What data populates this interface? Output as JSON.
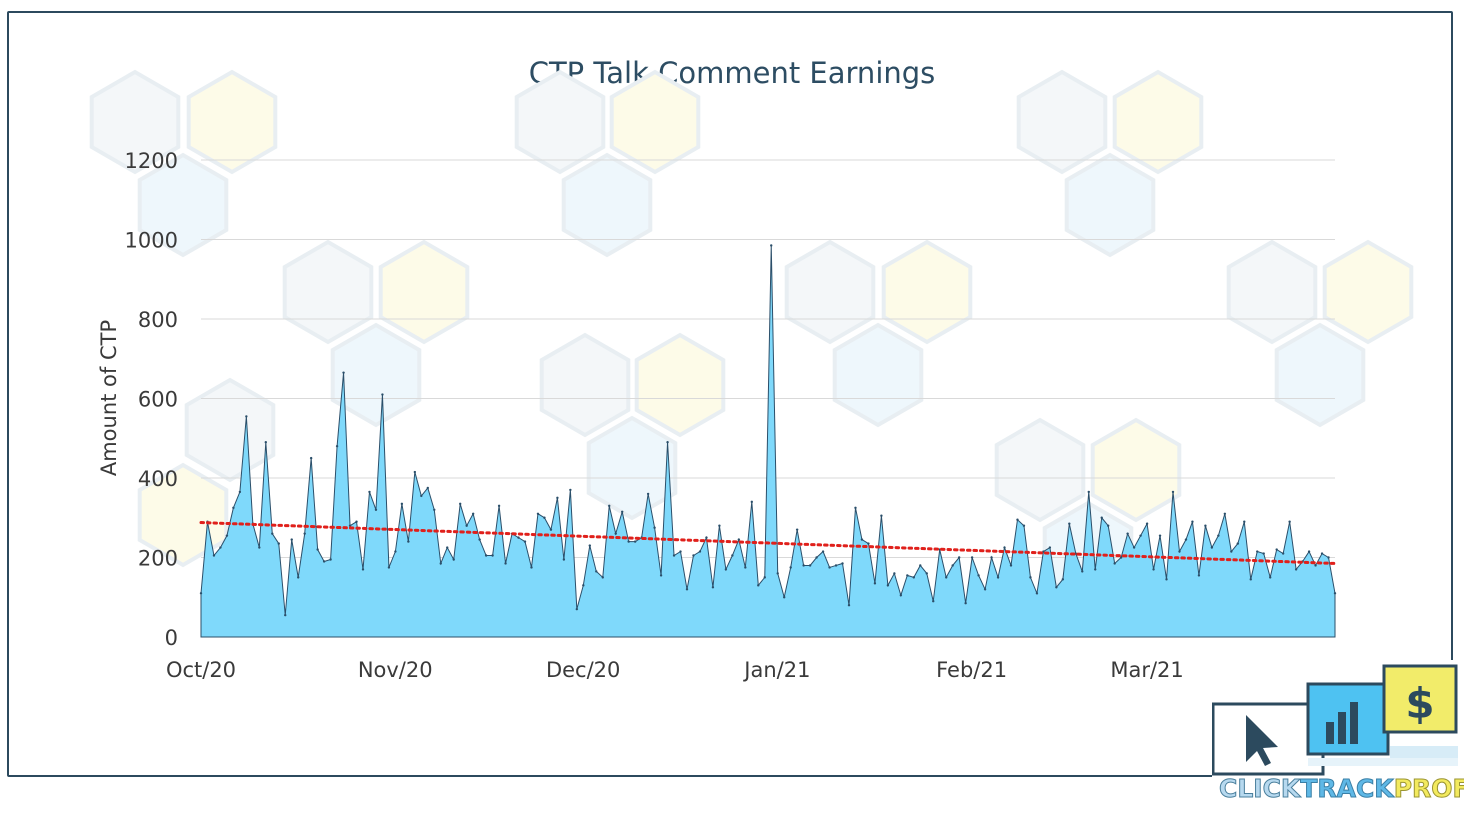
{
  "chart_data": {
    "type": "area",
    "title": "CTP Talk Comment Earnings",
    "xlabel": "",
    "ylabel": "Amount of CTP",
    "ylim": [
      0,
      1200
    ],
    "yticks": [
      "0",
      "200",
      "400",
      "600",
      "800",
      "1000",
      "1200"
    ],
    "xticks": [
      "Oct/20",
      "Nov/20",
      "Dec/20",
      "Jan/21",
      "Feb/21",
      "Mar/21"
    ],
    "grid": true,
    "legend": "none",
    "x_start": "2020-10-01",
    "x_end": "2021-03-31",
    "series": [
      {
        "values": [
          110,
          290,
          205,
          225,
          255,
          325,
          365,
          555,
          285,
          225,
          490,
          260,
          235,
          55,
          245,
          150,
          260,
          450,
          220,
          190,
          195,
          480,
          665,
          280,
          290,
          170,
          365,
          320,
          610,
          175,
          215,
          335,
          240,
          415,
          355,
          375,
          320,
          185,
          225,
          195,
          335,
          280,
          310,
          245,
          205,
          205,
          330,
          185,
          260,
          250,
          240,
          175,
          310,
          300,
          270,
          350,
          195,
          370,
          70,
          130,
          230,
          165,
          150,
          330,
          260,
          315,
          240,
          240,
          250,
          360,
          275,
          155,
          490,
          205,
          215,
          120,
          205,
          215,
          250,
          125,
          280,
          170,
          205,
          245,
          175,
          340,
          130,
          150,
          985,
          160,
          100,
          175,
          270,
          180,
          180,
          200,
          215,
          175,
          180,
          185,
          80,
          325,
          245,
          235,
          135,
          305,
          130,
          160,
          105,
          155,
          150,
          180,
          160,
          90,
          220,
          150,
          180,
          200,
          85,
          200,
          155,
          120,
          200,
          150,
          225,
          180,
          295,
          280,
          150,
          110,
          215,
          225,
          125,
          145,
          285,
          210,
          165,
          365,
          170,
          300,
          280,
          185,
          200,
          260,
          225,
          255,
          285,
          170,
          255,
          145,
          365,
          215,
          245,
          290,
          155,
          280,
          225,
          255,
          310,
          215,
          235,
          290,
          145,
          215,
          210,
          150,
          220,
          210,
          290,
          170,
          190,
          215,
          180,
          210,
          200,
          110
        ]
      }
    ],
    "trendline": {
      "start": 288,
      "end": 185,
      "color": "#e0201b"
    },
    "colors": {
      "fill": "#7fd9fb",
      "stroke": "#2b4f6a",
      "grid": "#d9d9d9",
      "axis_text": "#3a3a3a"
    }
  },
  "logo": {
    "text_parts": [
      "CLICK",
      "TRACK",
      "PROFIT"
    ],
    "icons": [
      "cursor-icon",
      "bar-chart-icon",
      "dollar-icon"
    ]
  }
}
